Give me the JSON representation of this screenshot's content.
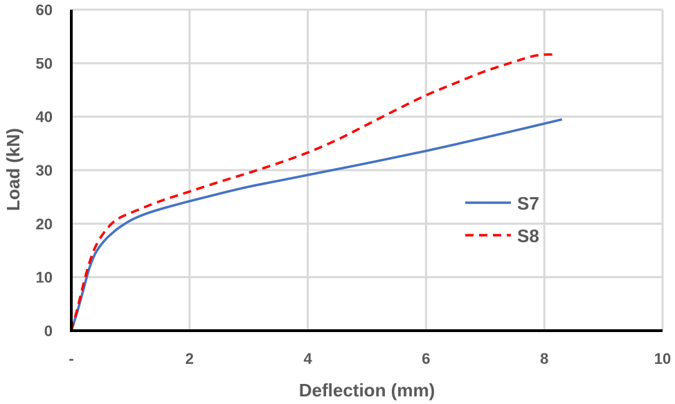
{
  "chart_data": {
    "type": "line",
    "title": "",
    "xlabel": "Deflection (mm)",
    "ylabel": "Load (kN)",
    "xlim": [
      0,
      10
    ],
    "ylim": [
      0,
      60
    ],
    "x_ticks": [
      0,
      2,
      4,
      6,
      8,
      10
    ],
    "x_tick_labels": [
      "-",
      "2",
      "4",
      "6",
      "8",
      "10"
    ],
    "y_ticks": [
      0,
      10,
      20,
      30,
      40,
      50,
      60
    ],
    "y_tick_labels": [
      "0",
      "10",
      "20",
      "30",
      "40",
      "50",
      "60"
    ],
    "grid": true,
    "legend_position": "right",
    "series": [
      {
        "name": "S7",
        "color": "#4472C4",
        "line_style": "solid",
        "x": [
          0,
          0.1,
          0.2,
          0.3,
          0.4,
          0.5,
          0.6,
          0.7,
          0.8,
          1.0,
          1.2,
          1.5,
          2.0,
          2.5,
          3.0,
          3.5,
          4.0,
          5.0,
          6.0,
          7.0,
          7.5,
          8.0,
          8.3
        ],
        "y": [
          0,
          3.5,
          7.5,
          11.5,
          14.3,
          16.0,
          17.3,
          18.3,
          19.2,
          20.6,
          21.6,
          22.7,
          24.2,
          25.6,
          26.9,
          28.0,
          29.1,
          31.3,
          33.6,
          36.1,
          37.4,
          38.7,
          39.5
        ]
      },
      {
        "name": "S8",
        "color": "#FF0000",
        "line_style": "dashed",
        "x": [
          0,
          0.1,
          0.2,
          0.3,
          0.4,
          0.5,
          0.6,
          0.7,
          0.8,
          1.0,
          1.5,
          2.0,
          2.5,
          3.0,
          3.5,
          4.0,
          4.5,
          5.0,
          5.5,
          6.0,
          6.5,
          7.0,
          7.5,
          7.8,
          8.0,
          8.2
        ],
        "y": [
          0,
          4.0,
          8.5,
          12.5,
          15.5,
          17.5,
          19.0,
          20.2,
          21.0,
          22.0,
          24.2,
          26.0,
          27.8,
          29.5,
          31.3,
          33.3,
          35.7,
          38.5,
          41.3,
          44.0,
          46.3,
          48.5,
          50.3,
          51.3,
          51.6,
          51.6
        ]
      }
    ]
  }
}
